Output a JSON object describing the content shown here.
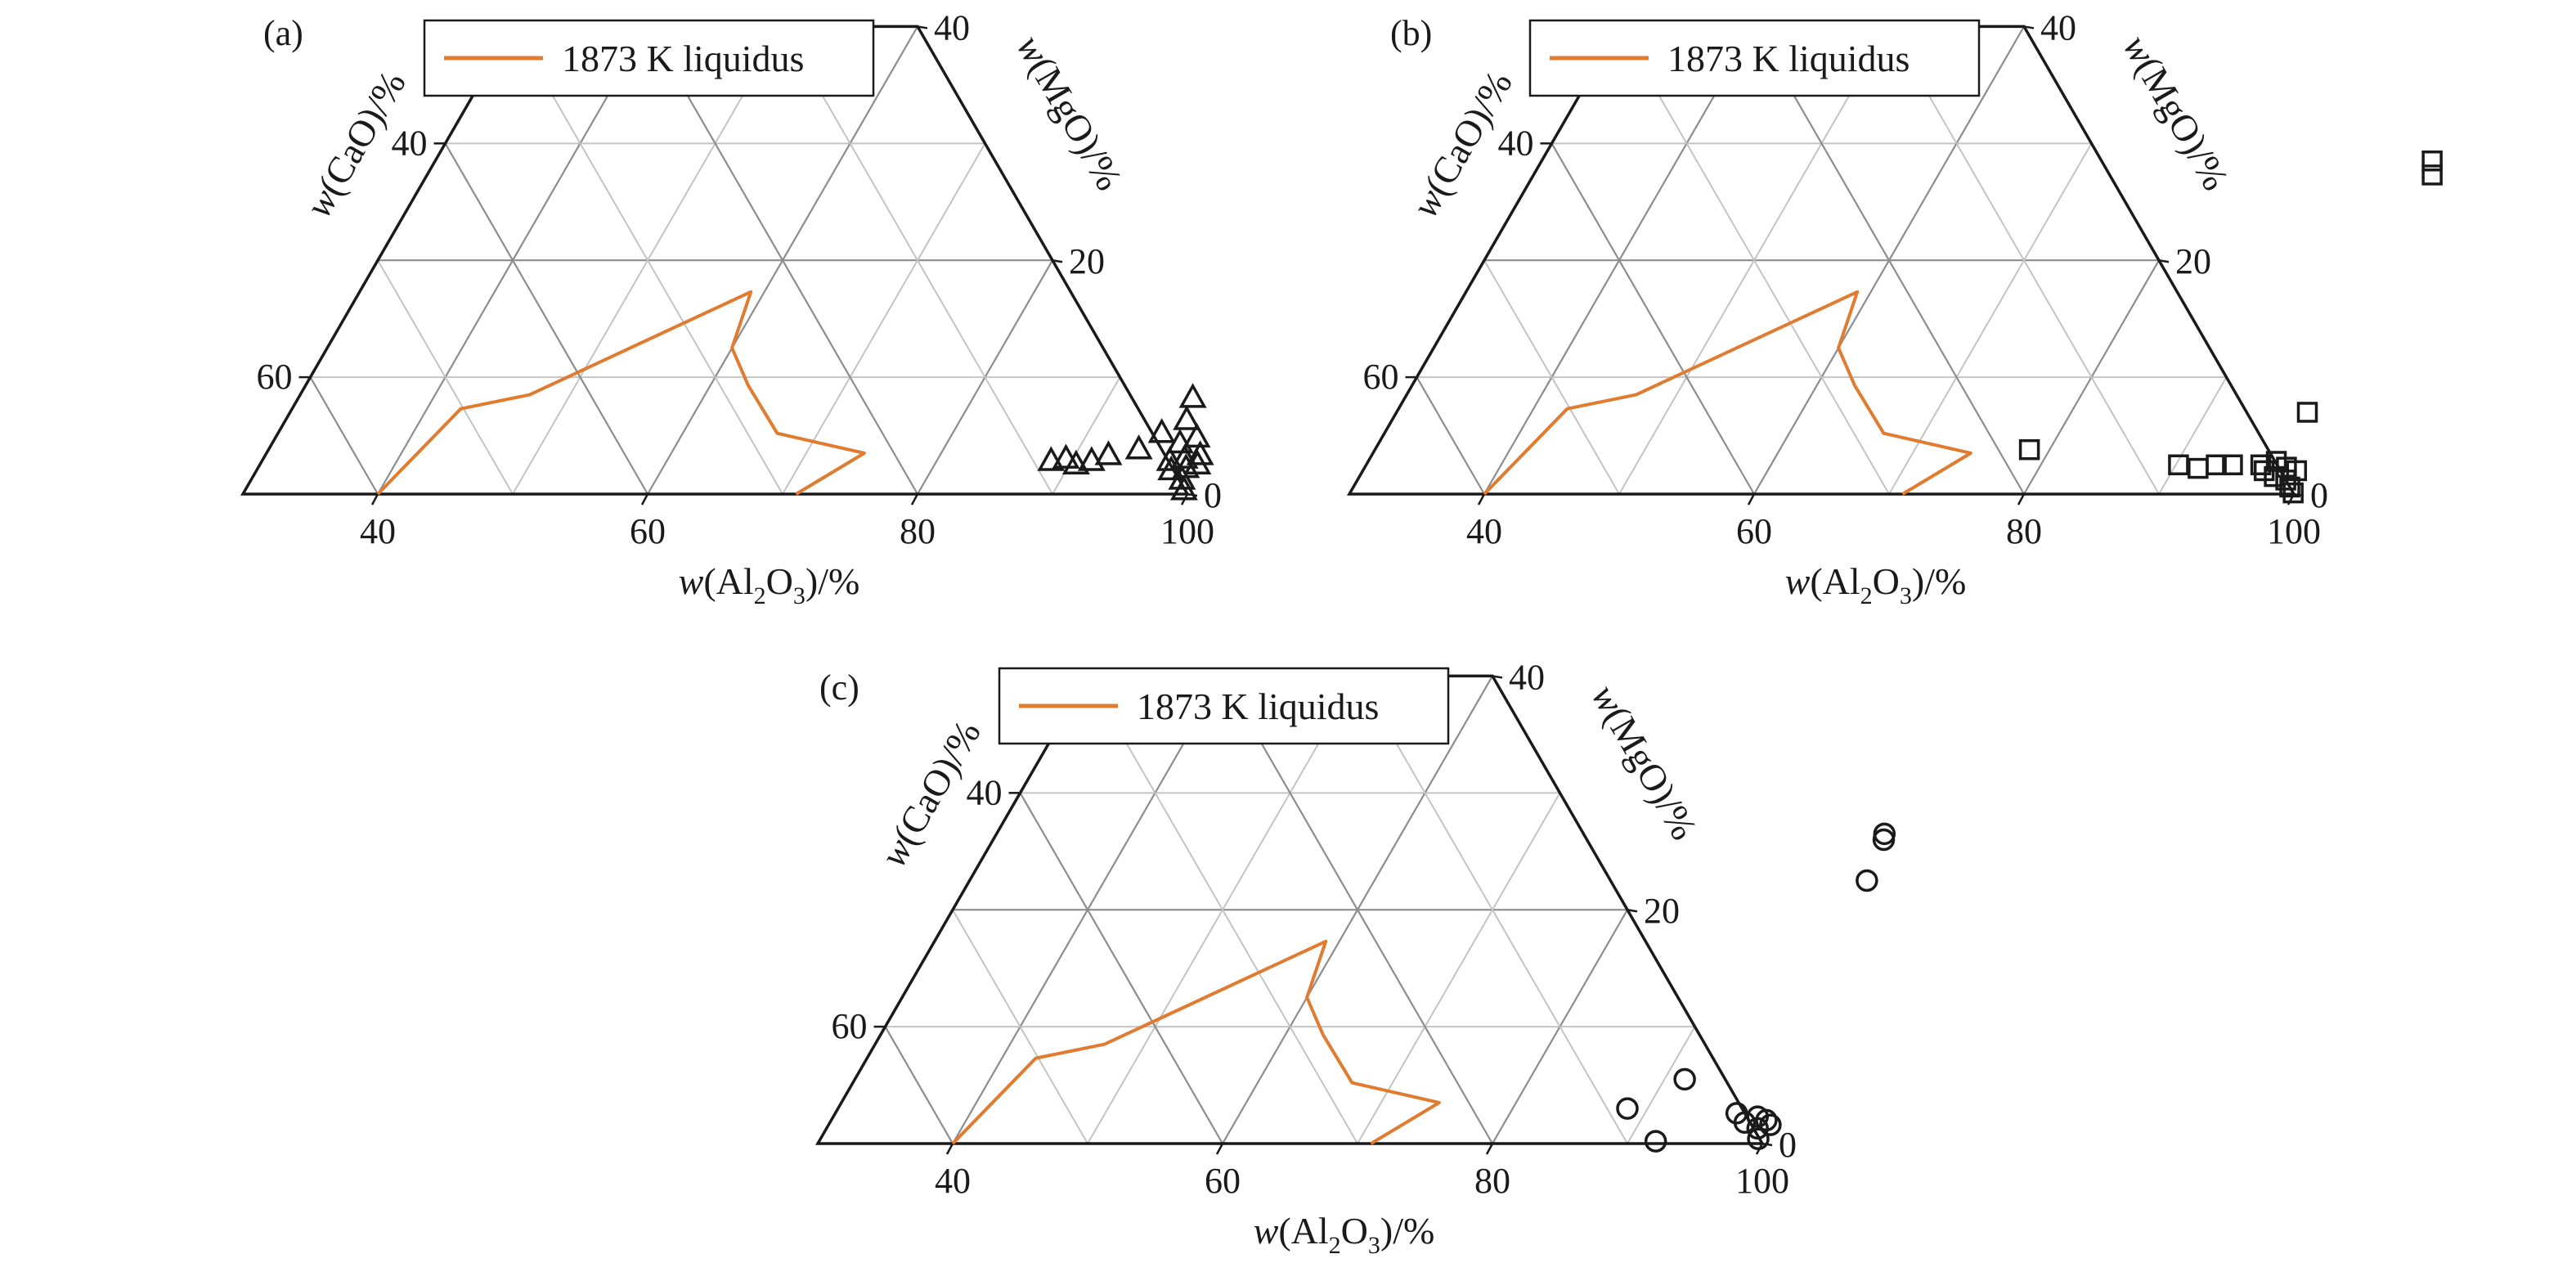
{
  "liquidus_color": "#e07b30",
  "marker_color": "#1a1a1a",
  "chart_data": [
    {
      "type": "scatter",
      "subtype": "ternary",
      "panel": "(a)",
      "legend": "1873 K liquidus",
      "xlabel": "w(Al2O3)/%",
      "ylabel": "w(CaO)/%",
      "rlabel": "w(MgO)/%",
      "xlabel_parts": {
        "pre": "w(Al",
        "sub1": "2",
        "mid": "O",
        "sub2": "3",
        "post": ")/%"
      },
      "bottom_ticks": [
        "40",
        "60",
        "80",
        "100"
      ],
      "left_ticks": [
        "40",
        "60"
      ],
      "right_ticks": [
        "40",
        "20",
        "0"
      ],
      "axis_ranges": {
        "Al2O3": [
          30,
          100
        ],
        "CaO": [
          0,
          70
        ],
        "MgO": [
          0,
          40
        ]
      },
      "grid": true,
      "legend_position": "top",
      "marker": "triangle",
      "liquidus": [
        {
          "al2o3": 40,
          "mgo": 0
        },
        {
          "al2o3": 42.5,
          "mgo": 7.3
        },
        {
          "al2o3": 47,
          "mgo": 8.5
        },
        {
          "al2o3": 59,
          "mgo": 17.3
        },
        {
          "al2o3": 60,
          "mgo": 12.5
        },
        {
          "al2o3": 62.8,
          "mgo": 9.3
        },
        {
          "al2o3": 67,
          "mgo": 5.2
        },
        {
          "al2o3": 74.3,
          "mgo": 3.5
        },
        {
          "al2o3": 71,
          "mgo": 0
        }
      ],
      "points": [
        {
          "al2o3": 88.5,
          "mgo": 2.8
        },
        {
          "al2o3": 89.5,
          "mgo": 3.0
        },
        {
          "al2o3": 90.5,
          "mgo": 2.5
        },
        {
          "al2o3": 91.5,
          "mgo": 2.8
        },
        {
          "al2o3": 92.5,
          "mgo": 3.3
        },
        {
          "al2o3": 94.5,
          "mgo": 3.8
        },
        {
          "al2o3": 95.5,
          "mgo": 5.2
        },
        {
          "al2o3": 96.3,
          "mgo": 8.2
        },
        {
          "al2o3": 96.8,
          "mgo": 6.3
        },
        {
          "al2o3": 97.3,
          "mgo": 4.3
        },
        {
          "al2o3": 97.3,
          "mgo": 2.8
        },
        {
          "al2o3": 97.8,
          "mgo": 2.0
        },
        {
          "al2o3": 98.3,
          "mgo": 4.8
        },
        {
          "al2o3": 98.3,
          "mgo": 3.0
        },
        {
          "al2o3": 98.8,
          "mgo": 2.2
        },
        {
          "al2o3": 99.0,
          "mgo": 1.2
        },
        {
          "al2o3": 99.3,
          "mgo": 3.3
        },
        {
          "al2o3": 99.5,
          "mgo": 2.5
        },
        {
          "al2o3": 99.6,
          "mgo": 0.3
        }
      ]
    },
    {
      "type": "scatter",
      "subtype": "ternary",
      "panel": "(b)",
      "legend": "1873 K liquidus",
      "xlabel": "w(Al2O3)/%",
      "ylabel": "w(CaO)/%",
      "rlabel": "w(MgO)/%",
      "xlabel_parts": {
        "pre": "w(Al",
        "sub1": "2",
        "mid": "O",
        "sub2": "3",
        "post": ")/%"
      },
      "bottom_ticks": [
        "40",
        "60",
        "80",
        "100"
      ],
      "left_ticks": [
        "40",
        "60"
      ],
      "right_ticks": [
        "40",
        "20",
        "0"
      ],
      "axis_ranges": {
        "Al2O3": [
          30,
          100
        ],
        "CaO": [
          0,
          70
        ],
        "MgO": [
          0,
          40
        ]
      },
      "grid": true,
      "legend_position": "top",
      "marker": "square",
      "liquidus": [
        {
          "al2o3": 40,
          "mgo": 0
        },
        {
          "al2o3": 42.5,
          "mgo": 7.3
        },
        {
          "al2o3": 47,
          "mgo": 8.5
        },
        {
          "al2o3": 59,
          "mgo": 17.3
        },
        {
          "al2o3": 60,
          "mgo": 12.5
        },
        {
          "al2o3": 62.8,
          "mgo": 9.3
        },
        {
          "al2o3": 67,
          "mgo": 5.2
        },
        {
          "al2o3": 74.3,
          "mgo": 3.5
        },
        {
          "al2o3": 71,
          "mgo": 0
        }
      ],
      "points": [
        {
          "al2o3": 78.5,
          "mgo": 3.8
        },
        {
          "al2o3": 90.2,
          "mgo": 2.5
        },
        {
          "al2o3": 91.8,
          "mgo": 2.2
        },
        {
          "al2o3": 93.0,
          "mgo": 2.5
        },
        {
          "al2o3": 94.2,
          "mgo": 2.5
        },
        {
          "al2o3": 96.3,
          "mgo": 2.5
        },
        {
          "al2o3": 96.8,
          "mgo": 2.0
        },
        {
          "al2o3": 97.3,
          "mgo": 2.8
        },
        {
          "al2o3": 97.8,
          "mgo": 1.5
        },
        {
          "al2o3": 98.3,
          "mgo": 2.3
        },
        {
          "al2o3": 98.8,
          "mgo": 1.2
        },
        {
          "al2o3": 99.2,
          "mgo": 2.0
        },
        {
          "al2o3": 99.4,
          "mgo": 0.6
        },
        {
          "al2o3": 99.9,
          "mgo": 0.1
        },
        {
          "al2o3": 97.5,
          "mgo": 7.0
        },
        {
          "al2o3": 96.0,
          "mgo": 28.5
        },
        {
          "al2o3": 96.6,
          "mgo": 27.3
        }
      ]
    },
    {
      "type": "scatter",
      "subtype": "ternary",
      "panel": "(c)",
      "legend": "1873 K liquidus",
      "xlabel": "w(Al2O3)/%",
      "ylabel": "w(CaO)/%",
      "rlabel": "w(MgO)/%",
      "xlabel_parts": {
        "pre": "w(Al",
        "sub1": "2",
        "mid": "O",
        "sub2": "3",
        "post": ")/%"
      },
      "bottom_ticks": [
        "40",
        "60",
        "80",
        "100"
      ],
      "left_ticks": [
        "40",
        "60"
      ],
      "right_ticks": [
        "40",
        "20",
        "0"
      ],
      "axis_ranges": {
        "Al2O3": [
          30,
          100
        ],
        "CaO": [
          0,
          70
        ],
        "MgO": [
          0,
          40
        ]
      },
      "grid": true,
      "legend_position": "top",
      "marker": "circle",
      "liquidus": [
        {
          "al2o3": 40,
          "mgo": 0
        },
        {
          "al2o3": 42.5,
          "mgo": 7.3
        },
        {
          "al2o3": 47,
          "mgo": 8.5
        },
        {
          "al2o3": 59,
          "mgo": 17.3
        },
        {
          "al2o3": 60,
          "mgo": 12.5
        },
        {
          "al2o3": 62.8,
          "mgo": 9.3
        },
        {
          "al2o3": 67,
          "mgo": 5.2
        },
        {
          "al2o3": 74.3,
          "mgo": 3.5
        },
        {
          "al2o3": 71,
          "mgo": 0
        }
      ],
      "points": [
        {
          "al2o3": 95.8,
          "mgo": 26.5
        },
        {
          "al2o3": 96.0,
          "mgo": 26.0
        },
        {
          "al2o3": 96.5,
          "mgo": 22.5
        },
        {
          "al2o3": 91.5,
          "mgo": 5.5
        },
        {
          "al2o3": 88.5,
          "mgo": 3.0
        },
        {
          "al2o3": 92.0,
          "mgo": 0.2
        },
        {
          "al2o3": 96.8,
          "mgo": 2.6
        },
        {
          "al2o3": 97.8,
          "mgo": 1.8
        },
        {
          "al2o3": 98.5,
          "mgo": 2.3
        },
        {
          "al2o3": 99.0,
          "mgo": 1.3
        },
        {
          "al2o3": 99.3,
          "mgo": 2.0
        },
        {
          "al2o3": 99.5,
          "mgo": 0.4
        },
        {
          "al2o3": 99.8,
          "mgo": 1.6
        }
      ]
    }
  ]
}
